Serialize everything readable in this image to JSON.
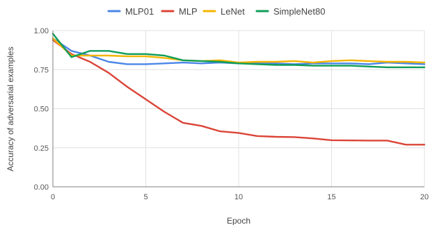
{
  "chart_data": {
    "type": "line",
    "title": "",
    "xlabel": "Epoch",
    "ylabel": "Accuracy of adversarial examples",
    "xlim": [
      0,
      20
    ],
    "ylim": [
      0,
      1
    ],
    "x_ticks": [
      0,
      5,
      10,
      15,
      20
    ],
    "y_ticks": [
      0,
      0.25,
      0.5,
      0.75,
      1
    ],
    "y_tick_labels": [
      "0.00",
      "0.25",
      "0.50",
      "0.75",
      "1.00"
    ],
    "x": [
      0,
      1,
      2,
      3,
      4,
      5,
      6,
      7,
      8,
      9,
      10,
      11,
      12,
      13,
      14,
      15,
      16,
      17,
      18,
      19,
      20
    ],
    "grid": "horizontal",
    "legend_position": "top",
    "series": [
      {
        "name": "MLP01",
        "color": "#4A86E8",
        "values": [
          0.95,
          0.87,
          0.84,
          0.8,
          0.785,
          0.785,
          0.79,
          0.795,
          0.79,
          0.795,
          0.79,
          0.79,
          0.79,
          0.785,
          0.79,
          0.79,
          0.79,
          0.785,
          0.795,
          0.79,
          0.785
        ]
      },
      {
        "name": "MLP",
        "color": "#DB4437",
        "values": [
          0.94,
          0.85,
          0.8,
          0.73,
          0.64,
          0.56,
          0.48,
          0.41,
          0.39,
          0.355,
          0.345,
          0.325,
          0.32,
          0.318,
          0.31,
          0.298,
          0.297,
          0.296,
          0.296,
          0.27,
          0.27
        ]
      },
      {
        "name": "LeNet",
        "color": "#F4B400",
        "values": [
          0.95,
          0.84,
          0.84,
          0.84,
          0.835,
          0.835,
          0.825,
          0.81,
          0.805,
          0.81,
          0.795,
          0.8,
          0.8,
          0.805,
          0.795,
          0.805,
          0.81,
          0.805,
          0.8,
          0.8,
          0.795
        ]
      },
      {
        "name": "SimpleNet80",
        "color": "#0F9D58",
        "values": [
          0.98,
          0.83,
          0.87,
          0.87,
          0.85,
          0.85,
          0.84,
          0.81,
          0.805,
          0.8,
          0.79,
          0.785,
          0.78,
          0.78,
          0.775,
          0.775,
          0.775,
          0.77,
          0.765,
          0.765,
          0.765
        ]
      }
    ]
  },
  "colors": {
    "axis": "#7f7f7f",
    "grid": "#e0e0e0",
    "text": "#555555"
  }
}
